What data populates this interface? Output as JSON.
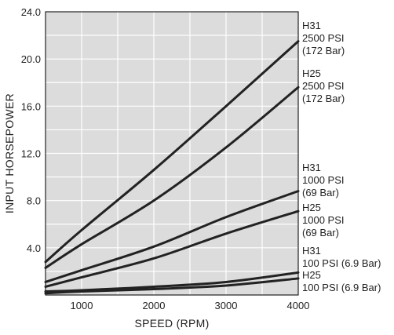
{
  "chart_data": {
    "type": "line",
    "xlabel": "SPEED (RPM)",
    "ylabel": "INPUT HORSEPOWER",
    "xlim": [
      500,
      4000
    ],
    "ylim": [
      0,
      24
    ],
    "x_ticks": [
      1000,
      2000,
      3000,
      4000
    ],
    "x_tick_labels": [
      "1000",
      "2000",
      "3000",
      "4000"
    ],
    "y_ticks": [
      4,
      8,
      12,
      16,
      20,
      24
    ],
    "y_tick_labels": [
      "4.0",
      "8.0",
      "12.0",
      "16.0",
      "20.0",
      "24.0"
    ],
    "grid": true,
    "plot_background": "#dcdcdc",
    "line_color": "#222222",
    "series": [
      {
        "label_lines": [
          "H31",
          "2500 PSI",
          "(172 Bar)"
        ],
        "x": [
          500,
          1000,
          2000,
          3000,
          4000
        ],
        "y": [
          2.8,
          5.5,
          10.6,
          16.0,
          21.5
        ]
      },
      {
        "label_lines": [
          "H25",
          "2500 PSI",
          "(172 Bar)"
        ],
        "x": [
          500,
          1000,
          2000,
          3000,
          4000
        ],
        "y": [
          2.3,
          4.3,
          8.0,
          12.5,
          17.6
        ]
      },
      {
        "label_lines": [
          "H31",
          "1000 PSI",
          "(69 Bar)"
        ],
        "x": [
          500,
          1000,
          2000,
          3000,
          4000
        ],
        "y": [
          1.1,
          2.1,
          4.1,
          6.6,
          8.8
        ]
      },
      {
        "label_lines": [
          "H25",
          "1000 PSI",
          "(69 Bar)"
        ],
        "x": [
          500,
          1000,
          2000,
          3000,
          4000
        ],
        "y": [
          0.7,
          1.5,
          3.1,
          5.2,
          7.1
        ]
      },
      {
        "label_lines": [
          "H31",
          "100 PSI (6.9 Bar)"
        ],
        "x": [
          500,
          1000,
          2000,
          3000,
          4000
        ],
        "y": [
          0.3,
          0.4,
          0.7,
          1.1,
          1.9
        ]
      },
      {
        "label_lines": [
          "H25",
          "100 PSI (6.9 Bar)"
        ],
        "x": [
          500,
          1000,
          2000,
          3000,
          4000
        ],
        "y": [
          0.15,
          0.3,
          0.5,
          0.8,
          1.4
        ]
      }
    ]
  }
}
